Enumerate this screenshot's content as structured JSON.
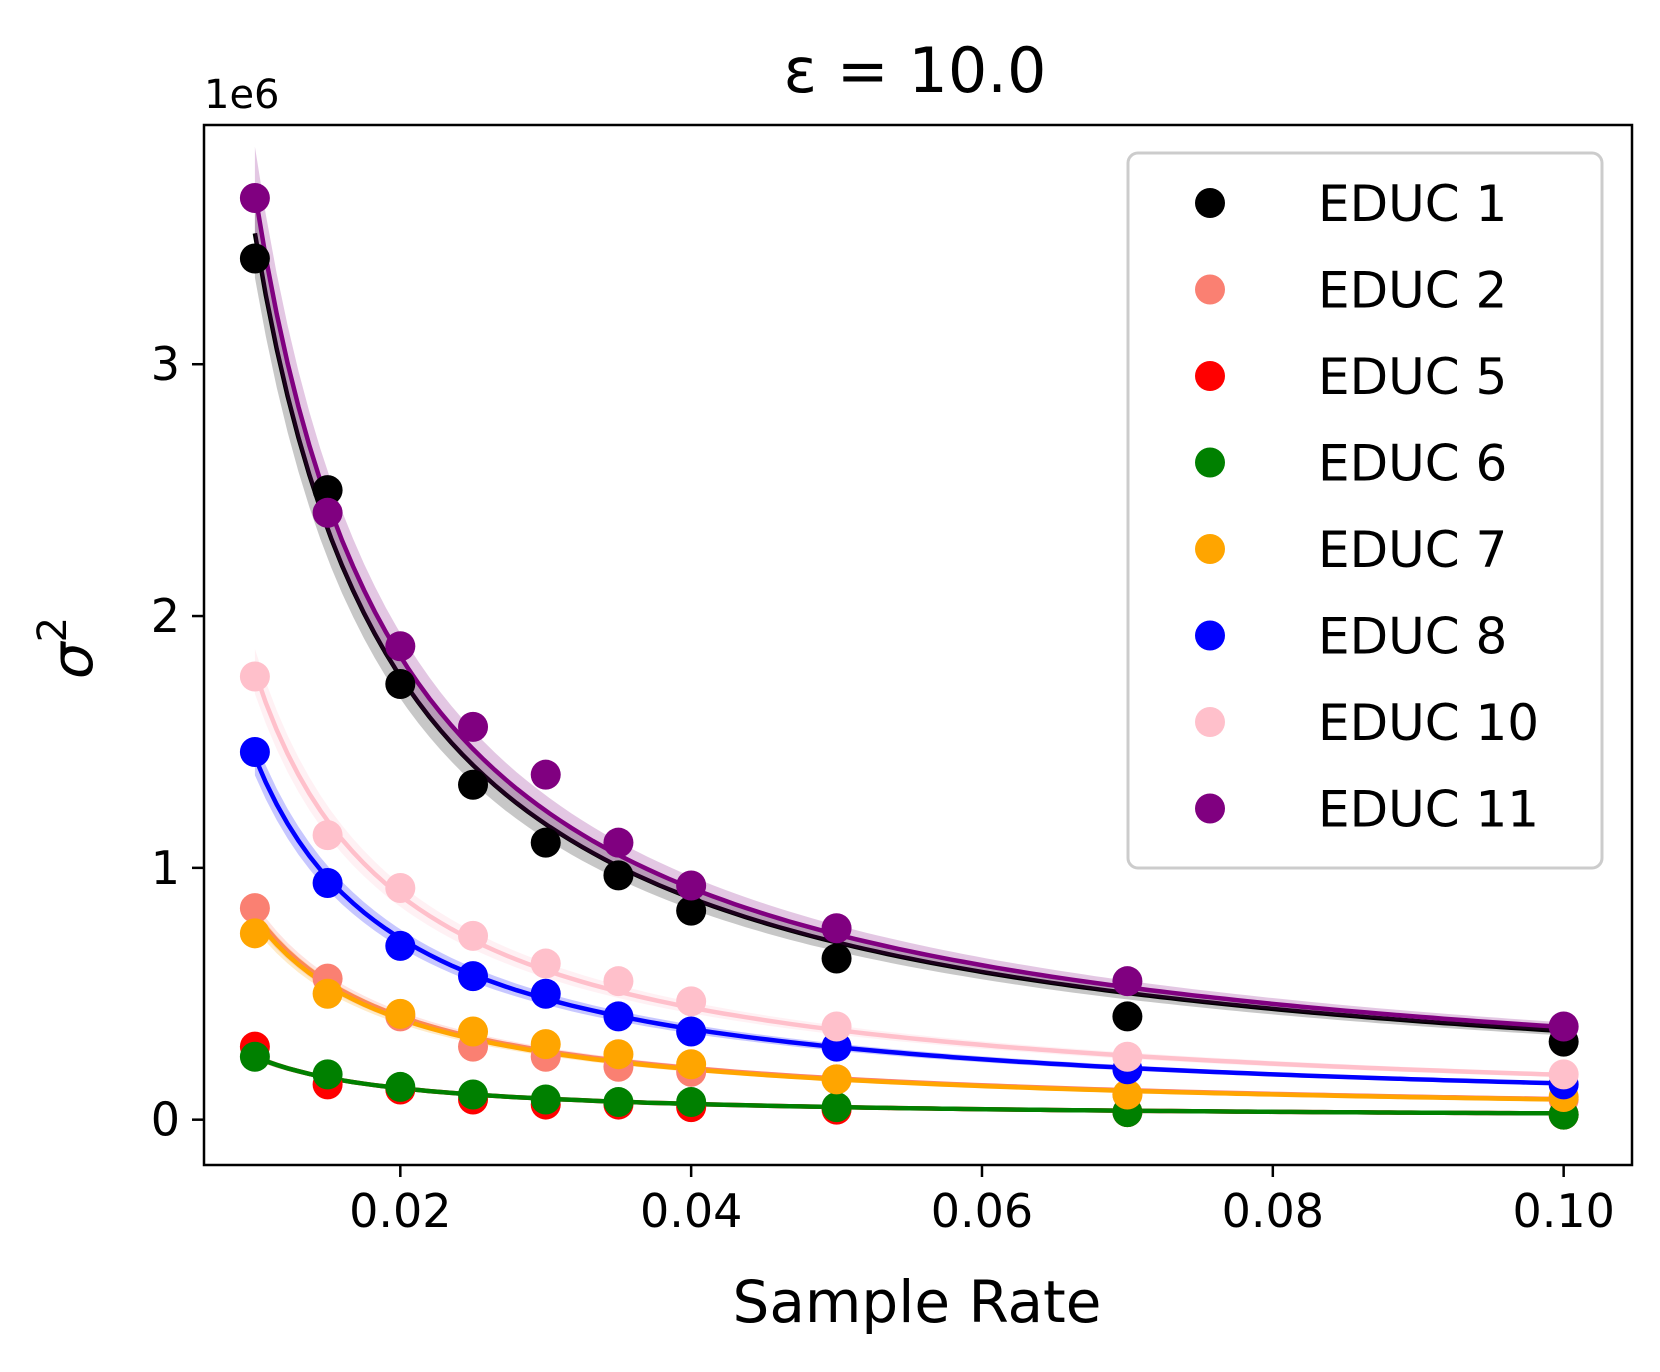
{
  "chart_data": {
    "type": "scatter",
    "title": "ε = 10.0",
    "xlabel": "Sample Rate",
    "ylabel": "σ",
    "ylabel_superscript": "2",
    "y_offset_label": "1e6",
    "xlim": [
      0.0065,
      0.1047
    ],
    "ylim": [
      -0.18,
      3.95
    ],
    "x_ticks": [
      0.02,
      0.04,
      0.06,
      0.08,
      0.1
    ],
    "x_tick_labels": [
      "0.02",
      "0.04",
      "0.06",
      "0.08",
      "0.10"
    ],
    "y_ticks": [
      0,
      1,
      2,
      3
    ],
    "y_tick_labels": [
      "0",
      "1",
      "2",
      "3"
    ],
    "y_unit_multiplier": 1000000,
    "grid": false,
    "legend_position": "top-right",
    "x": [
      0.01,
      0.015,
      0.02,
      0.025,
      0.03,
      0.035,
      0.04,
      0.05,
      0.07,
      0.1
    ],
    "series": [
      {
        "name": "EDUC 1",
        "color": "#000000",
        "fit_k": 0.0352,
        "values": [
          3.42,
          2.5,
          1.73,
          1.33,
          1.1,
          0.97,
          0.83,
          0.64,
          0.41,
          0.31
        ]
      },
      {
        "name": "EDUC 2",
        "color": "#fa8072",
        "fit_k": 0.0082,
        "values": [
          0.84,
          0.56,
          0.41,
          0.29,
          0.25,
          0.21,
          0.19,
          0.16,
          0.1,
          0.08
        ]
      },
      {
        "name": "EDUC 5",
        "color": "#ff0000",
        "fit_k": 0.0025,
        "values": [
          0.29,
          0.14,
          0.12,
          0.08,
          0.06,
          0.06,
          0.05,
          0.04,
          0.03,
          0.02
        ]
      },
      {
        "name": "EDUC 6",
        "color": "#008000",
        "fit_k": 0.0025,
        "values": [
          0.25,
          0.18,
          0.13,
          0.1,
          0.08,
          0.07,
          0.07,
          0.05,
          0.03,
          0.02
        ]
      },
      {
        "name": "EDUC 7",
        "color": "#ffa500",
        "fit_k": 0.008,
        "values": [
          0.74,
          0.5,
          0.42,
          0.35,
          0.3,
          0.26,
          0.22,
          0.16,
          0.1,
          0.09
        ]
      },
      {
        "name": "EDUC 8",
        "color": "#0000ff",
        "fit_k": 0.0144,
        "values": [
          1.46,
          0.94,
          0.69,
          0.57,
          0.5,
          0.41,
          0.35,
          0.29,
          0.2,
          0.14
        ]
      },
      {
        "name": "EDUC 10",
        "color": "#ffc0cb",
        "fit_k": 0.0178,
        "values": [
          1.76,
          1.13,
          0.92,
          0.73,
          0.62,
          0.55,
          0.47,
          0.37,
          0.25,
          0.18
        ]
      },
      {
        "name": "EDUC 11",
        "color": "#800080",
        "fit_k": 0.0368,
        "values": [
          3.66,
          2.41,
          1.88,
          1.56,
          1.37,
          1.1,
          0.93,
          0.76,
          0.55,
          0.37
        ]
      }
    ]
  }
}
